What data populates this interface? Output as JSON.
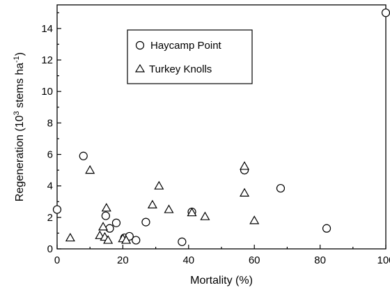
{
  "chart_data": {
    "type": "scatter",
    "xlabel": "Mortality (%)",
    "ylabel": "Regeneration (10",
    "ylabel_sup1": "3",
    "ylabel_mid": " stems ha",
    "ylabel_sup2": "-1",
    "ylabel_end": ")",
    "xlim": [
      0,
      100
    ],
    "ylim": [
      0,
      15.5
    ],
    "xticks": [
      0,
      20,
      40,
      60,
      80,
      100
    ],
    "yticks": [
      0,
      2,
      4,
      6,
      8,
      10,
      12,
      14
    ],
    "grid": false,
    "legend_position": "top-center",
    "series": [
      {
        "name": "Haycamp Point",
        "marker": "circle",
        "points": [
          [
            0,
            2.5
          ],
          [
            8,
            5.9
          ],
          [
            14.8,
            2.1
          ],
          [
            16,
            1.3
          ],
          [
            18,
            1.65
          ],
          [
            20.5,
            0.7
          ],
          [
            22,
            0.8
          ],
          [
            24,
            0.55
          ],
          [
            27,
            1.7
          ],
          [
            38,
            0.45
          ],
          [
            41,
            2.35
          ],
          [
            57,
            5.0
          ],
          [
            68,
            3.85
          ],
          [
            82,
            1.3
          ],
          [
            100,
            15.0
          ]
        ]
      },
      {
        "name": "Turkey Knolls",
        "marker": "triangle",
        "points": [
          [
            4,
            0.7
          ],
          [
            10,
            5.0
          ],
          [
            13,
            0.85
          ],
          [
            14,
            1.4
          ],
          [
            14.5,
            0.75
          ],
          [
            15,
            2.6
          ],
          [
            15.5,
            0.55
          ],
          [
            20,
            0.65
          ],
          [
            21,
            0.55
          ],
          [
            29,
            2.8
          ],
          [
            31,
            4.0
          ],
          [
            34,
            2.5
          ],
          [
            41,
            2.3
          ],
          [
            45,
            2.05
          ],
          [
            57,
            5.25
          ],
          [
            57,
            3.55
          ],
          [
            60,
            1.8
          ]
        ]
      }
    ]
  }
}
